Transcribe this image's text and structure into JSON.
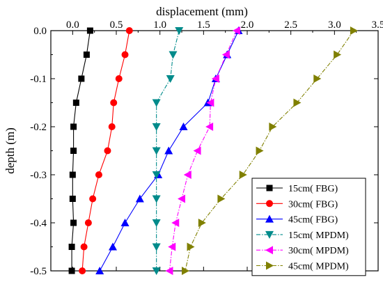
{
  "chart_data": {
    "type": "line",
    "xlabel": "displacement (mm)",
    "ylabel": "depth (m)",
    "xlim": [
      -0.25,
      3.5
    ],
    "ylim": [
      -0.5,
      0.0
    ],
    "x_axis_position": "top",
    "x_ticks": [
      0.0,
      0.5,
      1.0,
      1.5,
      2.0,
      2.5,
      3.0,
      3.5
    ],
    "y_ticks": [
      0.0,
      -0.1,
      -0.2,
      -0.3,
      -0.4,
      -0.5
    ],
    "x_tick_labels": [
      "0.0",
      "0.5",
      "1.0",
      "1.5",
      "2.0",
      "2.5",
      "3.0",
      "3.5"
    ],
    "y_tick_labels": [
      "0.0",
      "-0.1",
      "-0.2",
      "-0.3",
      "-0.4",
      "-0.5"
    ],
    "grid": false,
    "legend_position": "bottom-right",
    "series": [
      {
        "name": "15cm( FBG)",
        "color": "#000000",
        "marker": "square",
        "dash": "solid",
        "points": [
          [
            0.2,
            0.0
          ],
          [
            0.16,
            -0.05
          ],
          [
            0.1,
            -0.1
          ],
          [
            0.04,
            -0.15
          ],
          [
            0.01,
            -0.2
          ],
          [
            0.01,
            -0.25
          ],
          [
            0.0,
            -0.3
          ],
          [
            0.0,
            -0.35
          ],
          [
            0.01,
            -0.4
          ],
          [
            -0.01,
            -0.45
          ],
          [
            -0.01,
            -0.5
          ]
        ]
      },
      {
        "name": "30cm( FBG)",
        "color": "#ff0000",
        "marker": "circle",
        "dash": "solid",
        "points": [
          [
            0.65,
            0.0
          ],
          [
            0.6,
            -0.05
          ],
          [
            0.53,
            -0.1
          ],
          [
            0.47,
            -0.15
          ],
          [
            0.45,
            -0.2
          ],
          [
            0.4,
            -0.25
          ],
          [
            0.3,
            -0.3
          ],
          [
            0.23,
            -0.35
          ],
          [
            0.18,
            -0.4
          ],
          [
            0.13,
            -0.45
          ],
          [
            0.11,
            -0.5
          ]
        ]
      },
      {
        "name": "45cm( FBG)",
        "color": "#0000ff",
        "marker": "triangle-up",
        "dash": "solid",
        "points": [
          [
            1.9,
            0.0
          ],
          [
            1.77,
            -0.05
          ],
          [
            1.64,
            -0.1
          ],
          [
            1.55,
            -0.15
          ],
          [
            1.27,
            -0.2
          ],
          [
            1.1,
            -0.25
          ],
          [
            0.98,
            -0.3
          ],
          [
            0.77,
            -0.35
          ],
          [
            0.6,
            -0.4
          ],
          [
            0.46,
            -0.45
          ],
          [
            0.31,
            -0.5
          ]
        ]
      },
      {
        "name": "15cm( MPDM)",
        "color": "#008b8b",
        "marker": "triangle-down",
        "dash": "dash-dot",
        "points": [
          [
            1.22,
            0.0
          ],
          [
            1.15,
            -0.05
          ],
          [
            1.12,
            -0.1
          ],
          [
            0.96,
            -0.15
          ],
          [
            0.96,
            -0.2
          ],
          [
            0.96,
            -0.25
          ],
          [
            0.96,
            -0.3
          ],
          [
            0.96,
            -0.35
          ],
          [
            0.96,
            -0.4
          ],
          [
            0.96,
            -0.45
          ],
          [
            0.96,
            -0.5
          ]
        ]
      },
      {
        "name": "30cm( MPDM)",
        "color": "#ff00ff",
        "marker": "triangle-left",
        "dash": "dash-dot",
        "points": [
          [
            1.88,
            0.0
          ],
          [
            1.76,
            -0.05
          ],
          [
            1.64,
            -0.1
          ],
          [
            1.58,
            -0.15
          ],
          [
            1.57,
            -0.2
          ],
          [
            1.43,
            -0.25
          ],
          [
            1.32,
            -0.3
          ],
          [
            1.25,
            -0.35
          ],
          [
            1.18,
            -0.4
          ],
          [
            1.14,
            -0.45
          ],
          [
            1.11,
            -0.5
          ]
        ]
      },
      {
        "name": "45cm( MPDM)",
        "color": "#808000",
        "marker": "triangle-right",
        "dash": "dash-dot",
        "points": [
          [
            3.22,
            0.0
          ],
          [
            3.03,
            -0.05
          ],
          [
            2.8,
            -0.1
          ],
          [
            2.57,
            -0.15
          ],
          [
            2.29,
            -0.2
          ],
          [
            2.14,
            -0.25
          ],
          [
            1.95,
            -0.3
          ],
          [
            1.7,
            -0.35
          ],
          [
            1.48,
            -0.4
          ],
          [
            1.35,
            -0.45
          ],
          [
            1.29,
            -0.5
          ]
        ]
      }
    ]
  }
}
